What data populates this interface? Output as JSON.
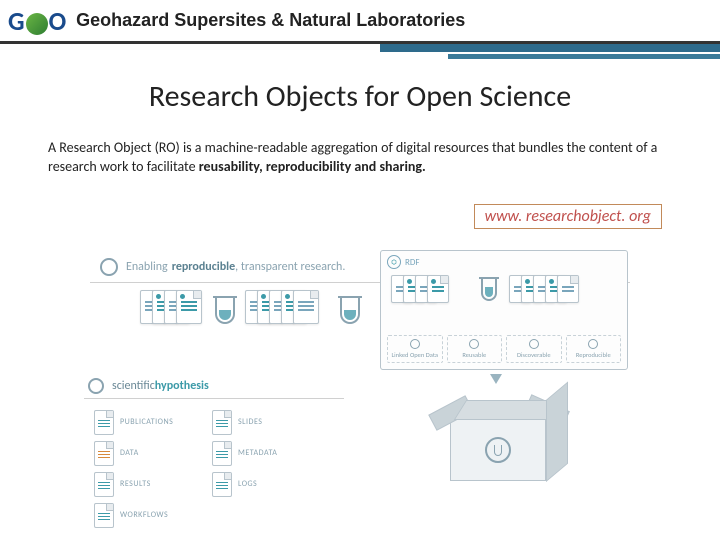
{
  "header": {
    "logo_text_g": "G",
    "logo_text_o": "O",
    "title": "Geohazard Supersites & Natural Laboratories"
  },
  "slide": {
    "title": "Research Objects for Open Science",
    "body_prefix": "A Research Object (RO) is a machine-readable aggregation of digital resources that bundles the content of a research work to facilitate ",
    "body_bold": "reusability, reproducibility and sharing.",
    "url": "www. researchobject. org"
  },
  "diagram": {
    "repro_lead": "Enabling ",
    "repro_bold": "reproducible",
    "repro_tail": ", transparent research.",
    "rdf_label": "RDF",
    "tags": [
      "Linked Open Data",
      "Reusable",
      "Discoverable",
      "Reproducible"
    ],
    "hypo_lead": "scientific",
    "hypo_bold": "hypothesis",
    "grid": [
      {
        "label": "PUBLICATIONS",
        "color": "teal"
      },
      {
        "label": "SLIDES",
        "color": "teal"
      },
      {
        "label": "DATA",
        "color": "orange"
      },
      {
        "label": "METADATA",
        "color": "teal"
      },
      {
        "label": "RESULTS",
        "color": "teal"
      },
      {
        "label": "LOGS",
        "color": "teal"
      },
      {
        "label": "WORKFLOWS",
        "color": "teal"
      }
    ],
    "colors": {
      "accent_teal": "#3c9aa8",
      "muted": "#8aa3b0",
      "border": "#b8c4cc",
      "orange": "#d88a3c"
    }
  }
}
